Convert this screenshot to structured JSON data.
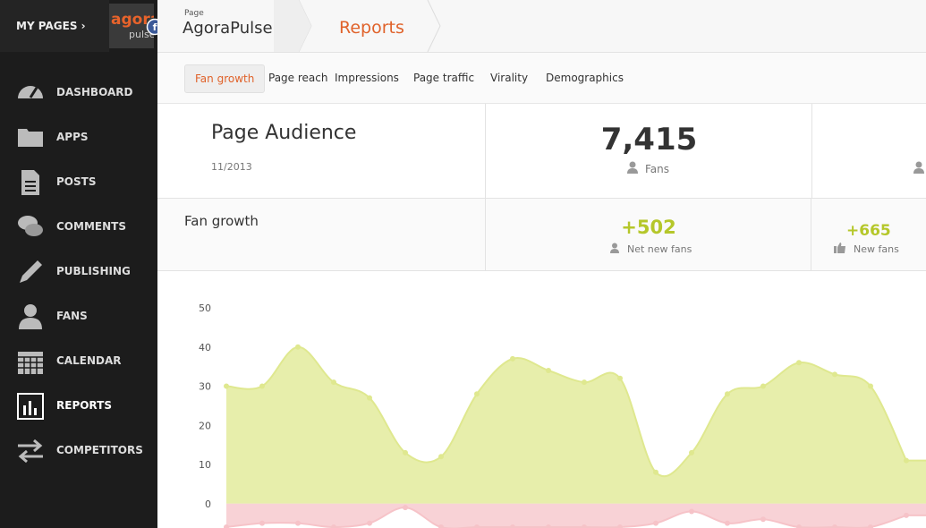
{
  "sidebar": {
    "my_pages": "MY PAGES",
    "logo": "agora",
    "logo_sub": "pulse",
    "items": [
      "DASHBOARD",
      "APPS",
      "POSTS",
      "COMMENTS",
      "PUBLISHING",
      "FANS",
      "CALENDAR",
      "REPORTS",
      "COMPETITORS"
    ],
    "active": 7
  },
  "header": {
    "page_label": "Page",
    "page_name": "AgoraPulse",
    "section": "Reports"
  },
  "tabs": {
    "items": [
      "Fan growth",
      "Page reach",
      "Impressions",
      "Page traffic",
      "Virality",
      "Demographics"
    ],
    "active": 0
  },
  "audience": {
    "title": "Page Audience",
    "date": "11/2013",
    "fans_value": "7,415",
    "fans_label": "Fans"
  },
  "growth": {
    "title": "Fan growth",
    "net_value": "+502",
    "net_label": "Net new fans",
    "new_value": "+665",
    "new_label": "New fans"
  },
  "chart_data": {
    "type": "area",
    "series": [
      {
        "color": "#dfe88f",
        "values": [
          30,
          30,
          40,
          31,
          27,
          13,
          12,
          28,
          37,
          34,
          31,
          32,
          8,
          13,
          28,
          30,
          36,
          33,
          30,
          11
        ]
      },
      {
        "color": "#f6c3c8",
        "values": [
          -6,
          -5,
          -5,
          -6,
          -5,
          -1,
          -6,
          -6,
          -6,
          -6,
          -6,
          -6,
          -5,
          -2,
          -5,
          -4,
          -6,
          -6,
          -6,
          -3
        ]
      }
    ],
    "ylim": [
      -6,
      50
    ],
    "yticks": [
      0,
      10,
      20,
      30,
      40,
      50
    ]
  }
}
